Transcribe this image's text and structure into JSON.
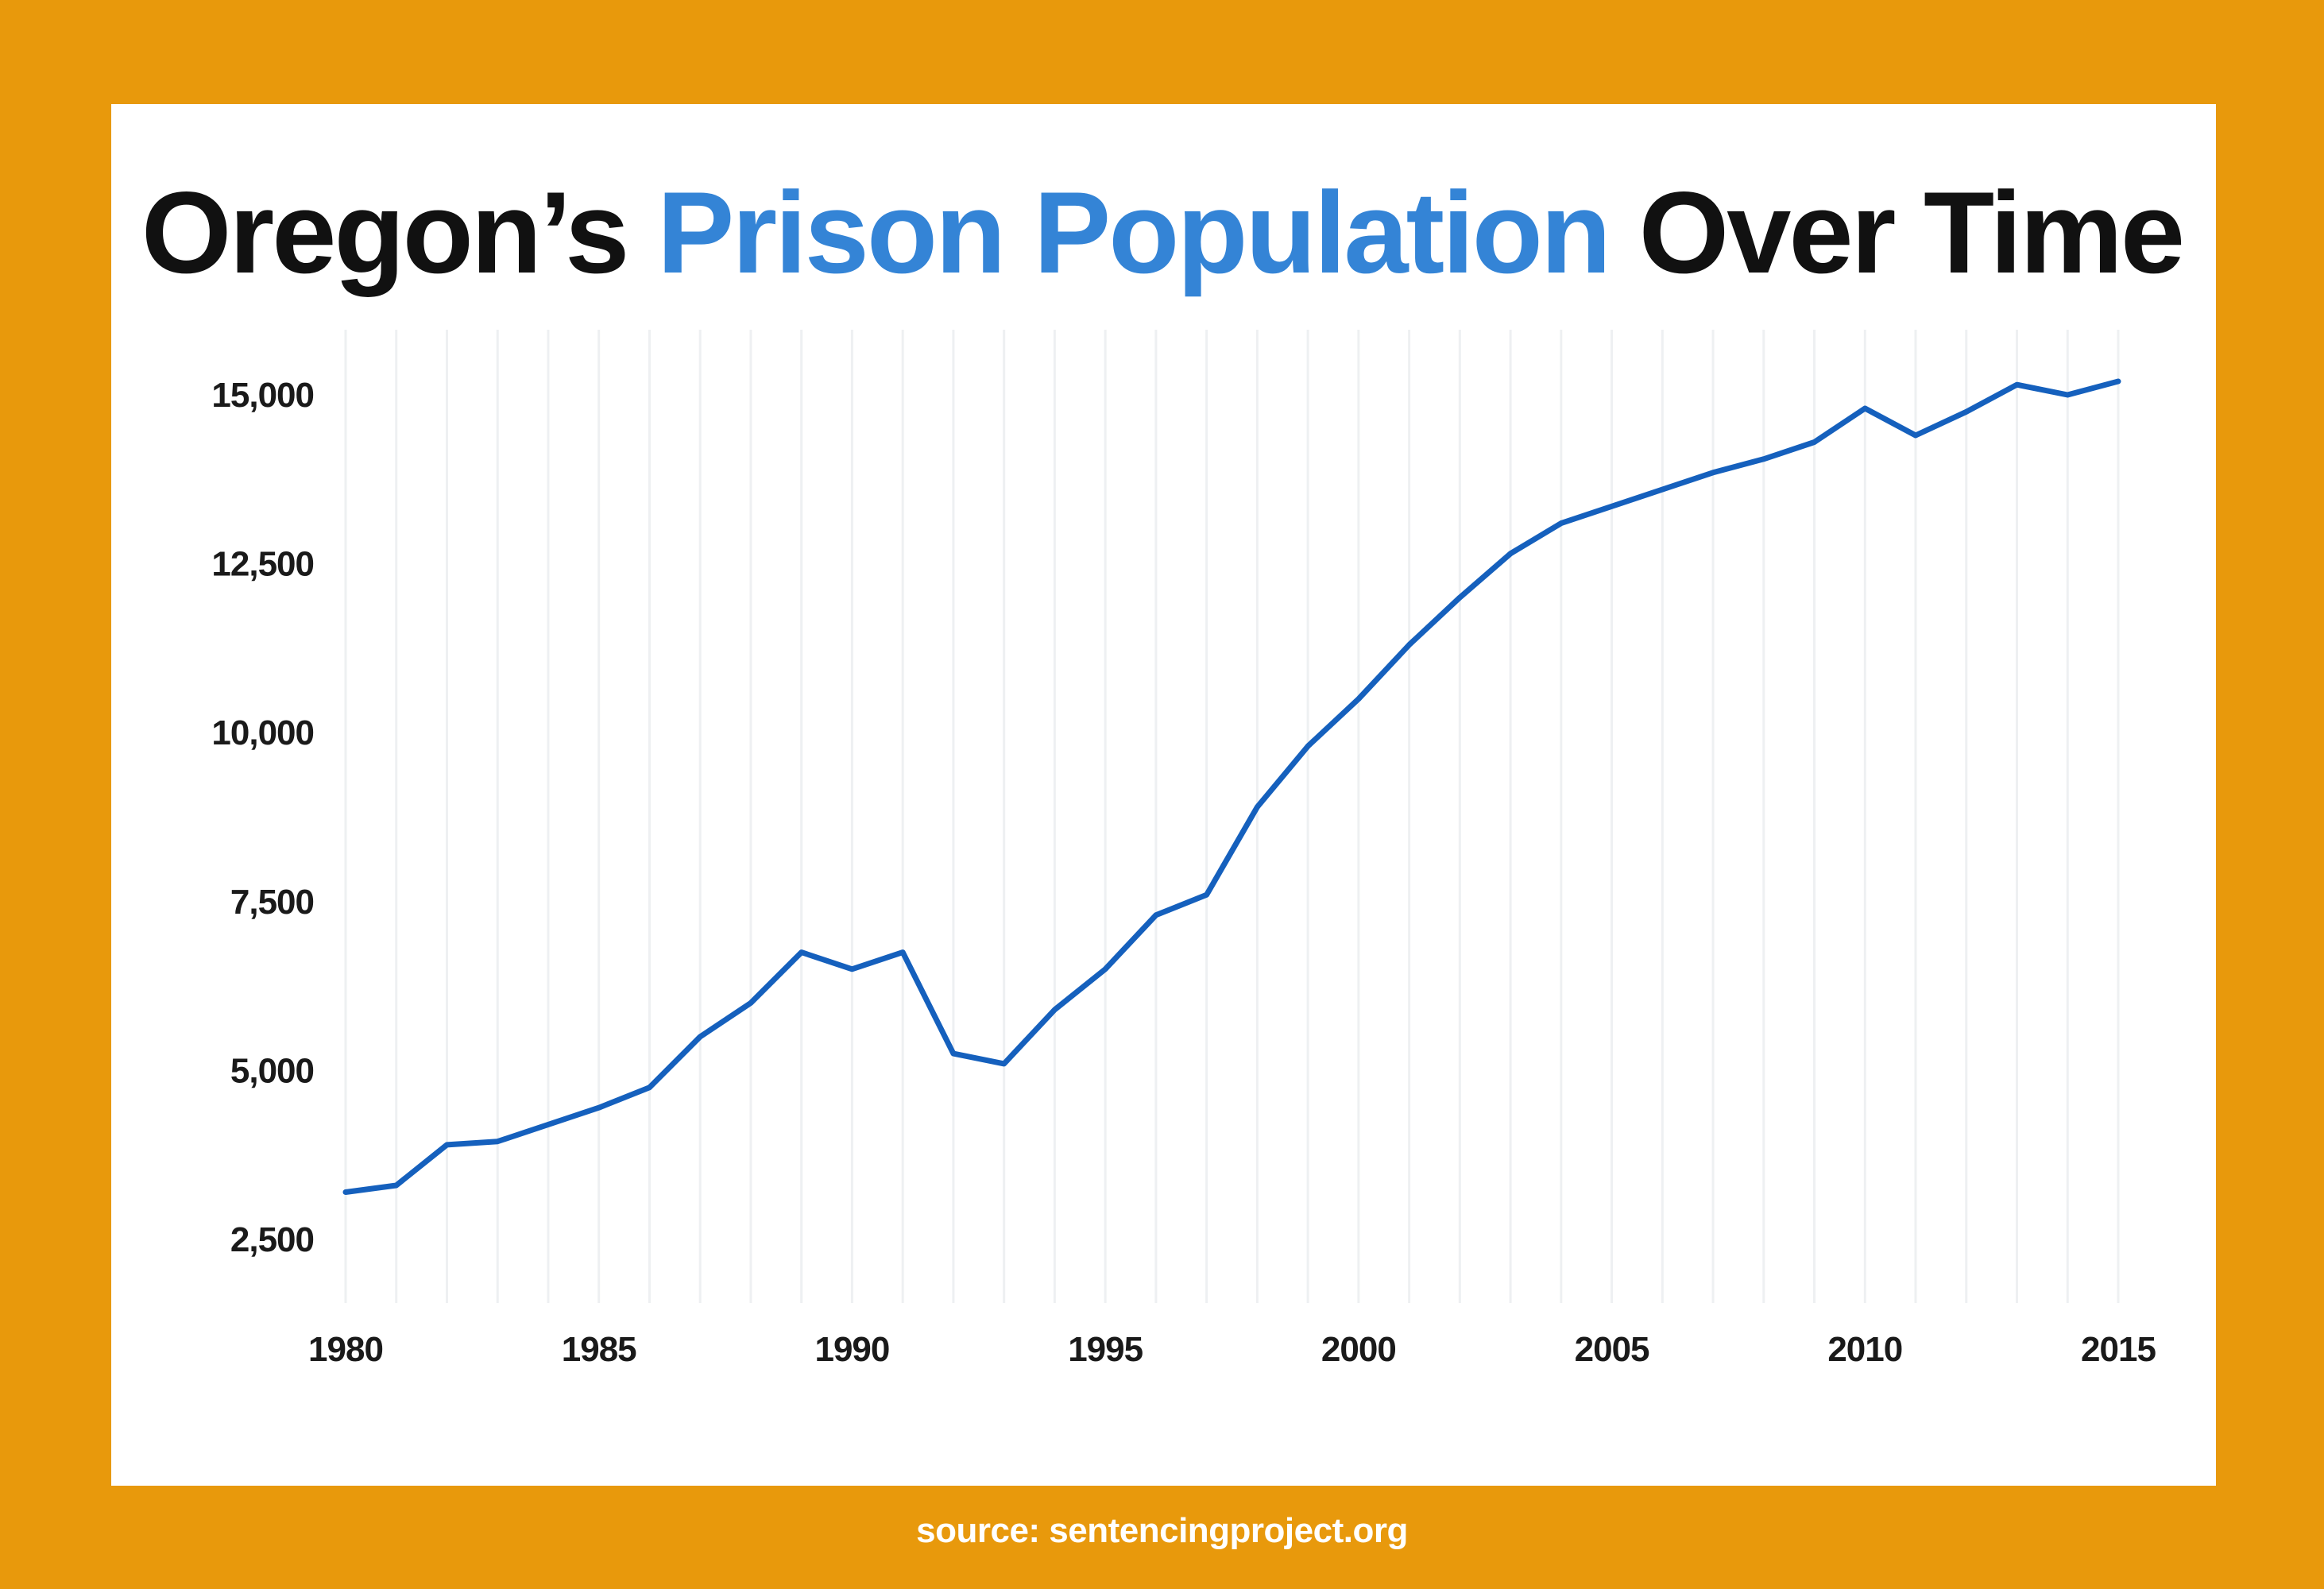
{
  "title": {
    "part1": "Oregon’s ",
    "highlight": "Prison Population",
    "part2": " Over Time"
  },
  "source": "source: sentencingproject.org",
  "colors": {
    "background": "#E8990C",
    "card": "#FFFFFF",
    "title_text": "#111111",
    "title_highlight": "#3484D6",
    "line": "#1560BD",
    "gridline": "#EEF0F2",
    "tick_text": "#1A1A1A"
  },
  "chart_data": {
    "type": "line",
    "title": "Oregon’s Prison Population Over Time",
    "xlabel": "",
    "ylabel": "",
    "x_ticks": [
      "1980",
      "1985",
      "1990",
      "1995",
      "2000",
      "2005",
      "2010",
      "2015"
    ],
    "y_ticks": [
      "2,500",
      "5,000",
      "7,500",
      "10,000",
      "12,500",
      "15,000"
    ],
    "y_tick_values": [
      2500,
      5000,
      7500,
      10000,
      12500,
      15000
    ],
    "xlim": [
      1980,
      2015
    ],
    "ylim": [
      1500,
      16000
    ],
    "grid": "vertical",
    "legend": "none",
    "x": [
      1980,
      1981,
      1982,
      1983,
      1984,
      1985,
      1986,
      1987,
      1988,
      1989,
      1990,
      1991,
      1992,
      1993,
      1994,
      1995,
      1996,
      1997,
      1998,
      1999,
      2000,
      2001,
      2002,
      2003,
      2004,
      2005,
      2006,
      2007,
      2008,
      2009,
      2010,
      2011,
      2012,
      2013,
      2014,
      2015
    ],
    "y": [
      3200,
      3300,
      3900,
      3950,
      4200,
      4450,
      4750,
      5500,
      6000,
      6750,
      6500,
      6750,
      5250,
      5100,
      5900,
      6500,
      7300,
      7600,
      8900,
      9800,
      10500,
      11300,
      12000,
      12650,
      13100,
      13350,
      13600,
      13850,
      14050,
      14300,
      14800,
      14400,
      14750,
      15150,
      15000,
      15200
    ]
  }
}
